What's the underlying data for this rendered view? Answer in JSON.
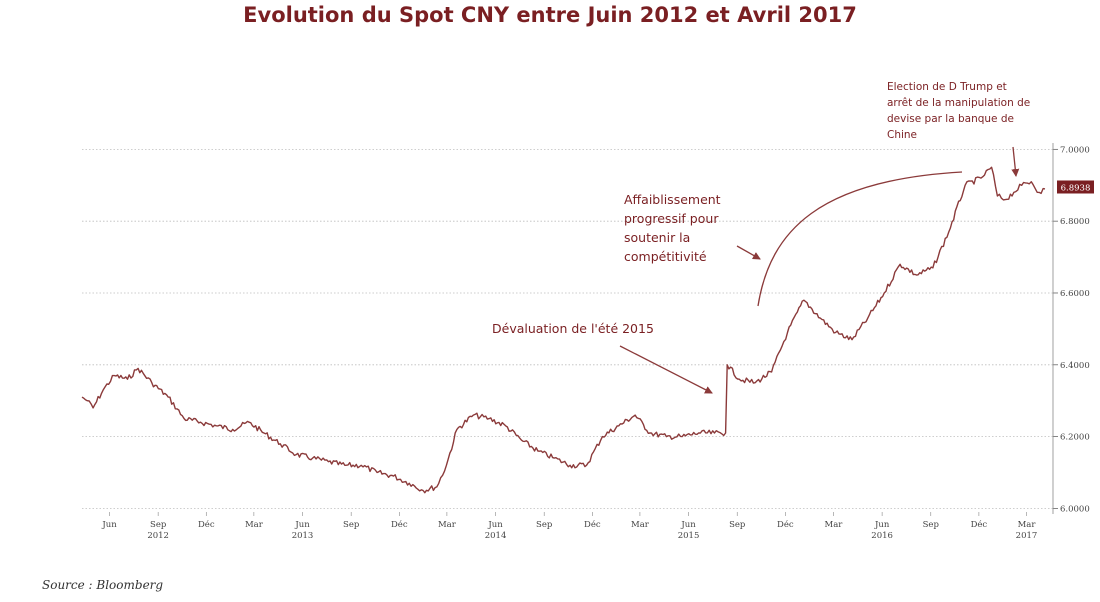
{
  "chart_data": {
    "type": "line",
    "title": "Evolution du Spot CNY entre Juin 2012 et Avril 2017",
    "ylim": [
      5.99,
      7.04
    ],
    "y_ticks": [
      "6.0000",
      "6.2000",
      "6.4000",
      "6.6000",
      "6.8000",
      "7.0000"
    ],
    "y_tick_values": [
      6.0,
      6.2,
      6.4,
      6.6,
      6.8,
      7.0
    ],
    "x_tick_labels": [
      "Jun",
      "Sep",
      "Déc",
      "Mar",
      "Jun",
      "Sep",
      "Déc",
      "Mar",
      "Jun",
      "Sep",
      "Déc",
      "Mar",
      "Jun",
      "Sep",
      "Déc",
      "Mar",
      "Jun",
      "Sep",
      "Déc",
      "Mar"
    ],
    "x_tick_dates": [
      "2012-06-01",
      "2012-09-01",
      "2012-12-01",
      "2013-03-01",
      "2013-06-01",
      "2013-09-01",
      "2013-12-01",
      "2014-03-01",
      "2014-06-01",
      "2014-09-01",
      "2014-12-01",
      "2015-03-01",
      "2015-06-01",
      "2015-09-01",
      "2015-12-01",
      "2016-03-01",
      "2016-06-01",
      "2016-09-01",
      "2016-12-01",
      "2017-03-01"
    ],
    "year_labels": [
      "2012",
      "2013",
      "2014",
      "2015",
      "2016",
      "2017"
    ],
    "last_value_label": "6.8938",
    "grid": true,
    "line_color": "#8b3a3a",
    "series": [
      {
        "x": [
          "2012-04-10",
          "2012-04-20",
          "2012-05-01",
          "2012-05-20",
          "2012-06-10",
          "2012-07-05",
          "2012-07-25",
          "2012-08-20",
          "2012-09-20",
          "2012-10-20",
          "2012-11-20",
          "2012-12-20",
          "2013-01-20",
          "2013-02-20",
          "2013-03-20",
          "2013-04-20",
          "2013-05-20",
          "2013-06-20",
          "2013-07-20",
          "2013-08-20",
          "2013-09-20",
          "2013-10-20",
          "2013-11-20",
          "2013-12-20",
          "2014-01-15",
          "2014-02-10",
          "2014-02-28",
          "2014-03-20",
          "2014-04-20",
          "2014-05-20",
          "2014-06-20",
          "2014-07-20",
          "2014-08-20",
          "2014-09-20",
          "2014-10-20",
          "2014-11-20",
          "2014-12-20",
          "2015-01-20",
          "2015-02-20",
          "2015-03-20",
          "2015-04-20",
          "2015-05-20",
          "2015-06-20",
          "2015-07-20",
          "2015-08-10",
          "2015-08-13",
          "2015-09-05",
          "2015-10-05",
          "2015-11-05",
          "2015-12-05",
          "2016-01-05",
          "2016-02-05",
          "2016-03-05",
          "2016-04-05",
          "2016-05-05",
          "2016-06-05",
          "2016-07-05",
          "2016-08-05",
          "2016-09-05",
          "2016-10-05",
          "2016-11-05",
          "2016-12-05",
          "2016-12-25",
          "2017-01-05",
          "2017-01-20",
          "2017-02-05",
          "2017-02-20",
          "2017-03-10",
          "2017-03-25",
          "2017-04-05"
        ],
        "values": [
          6.31,
          6.3,
          6.28,
          6.33,
          6.37,
          6.36,
          6.39,
          6.35,
          6.31,
          6.25,
          6.24,
          6.23,
          6.22,
          6.24,
          6.21,
          6.18,
          6.15,
          6.14,
          6.13,
          6.12,
          6.12,
          6.1,
          6.09,
          6.07,
          6.05,
          6.06,
          6.12,
          6.22,
          6.26,
          6.25,
          6.23,
          6.19,
          6.16,
          6.14,
          6.12,
          6.12,
          6.2,
          6.23,
          6.26,
          6.21,
          6.2,
          6.2,
          6.21,
          6.21,
          6.21,
          6.4,
          6.36,
          6.35,
          6.38,
          6.49,
          6.58,
          6.53,
          6.49,
          6.47,
          6.53,
          6.6,
          6.68,
          6.65,
          6.67,
          6.77,
          6.9,
          6.92,
          6.95,
          6.87,
          6.86,
          6.88,
          6.9,
          6.91,
          6.88,
          6.89
        ]
      }
    ]
  },
  "annotations": {
    "trump": [
      "Election de D Trump et",
      "arrêt de la manipulation de",
      "devise par la banque de",
      "Chine"
    ],
    "affaiblissement": [
      "Affaiblissement",
      "progressif pour",
      "soutenir la",
      "compétitivité"
    ],
    "devaluation": "Dévaluation de l'été 2015"
  },
  "source": "Source : Bloomberg"
}
